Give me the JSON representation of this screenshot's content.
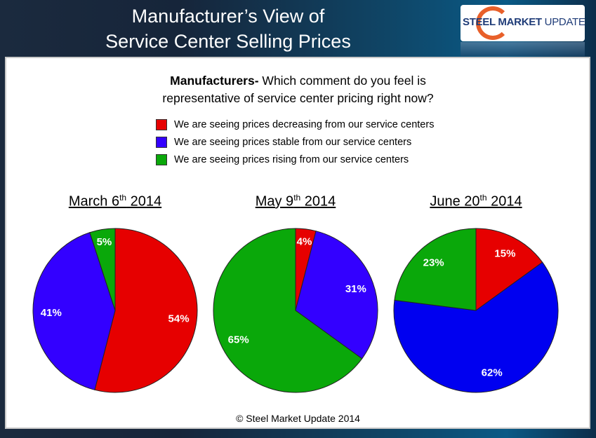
{
  "header": {
    "title_line1": "Manufacturer’s View of",
    "title_line2": "Service Center Selling Prices",
    "logo": {
      "text_bold": "STEEL MARKET",
      "text_light": "UPDATE"
    }
  },
  "question": {
    "bold": "Manufacturers-",
    "line1": " Which comment do you feel is",
    "line2": "representative of service center pricing right now?"
  },
  "footer": "© Steel Market Update 2014",
  "chart_data": {
    "type": "pie",
    "legend": [
      {
        "label": "We are seeing prices decreasing from our service centers",
        "color": "#e60000"
      },
      {
        "label": "We are seeing prices stable from our service centers",
        "color": "#3300ff"
      },
      {
        "label": "We are seeing prices rising from our service centers",
        "color": "#0aa80a"
      }
    ],
    "legend_placement": "top",
    "charts": [
      {
        "title": "March 6",
        "title_sup": "th",
        "title_tail": " 2014",
        "slices": [
          {
            "value": 54,
            "label": "54%",
            "color": "#e60000"
          },
          {
            "value": 41,
            "label": "41%",
            "color": "#3300ff"
          },
          {
            "value": 5,
            "label": "5%",
            "color": "#0aa80a"
          }
        ]
      },
      {
        "title": "May 9",
        "title_sup": "th",
        "title_tail": " 2014",
        "slices": [
          {
            "value": 4,
            "label": "4%",
            "color": "#e60000"
          },
          {
            "value": 31,
            "label": "31%",
            "color": "#3300ff"
          },
          {
            "value": 65,
            "label": "65%",
            "color": "#0aa80a"
          }
        ]
      },
      {
        "title": "June 20",
        "title_sup": "th",
        "title_tail": " 2014",
        "slices": [
          {
            "value": 15,
            "label": "15%",
            "color": "#e60000"
          },
          {
            "value": 62,
            "label": "62%",
            "color": "#0000f0"
          },
          {
            "value": 23,
            "label": "23%",
            "color": "#0aa80a"
          }
        ]
      }
    ]
  }
}
